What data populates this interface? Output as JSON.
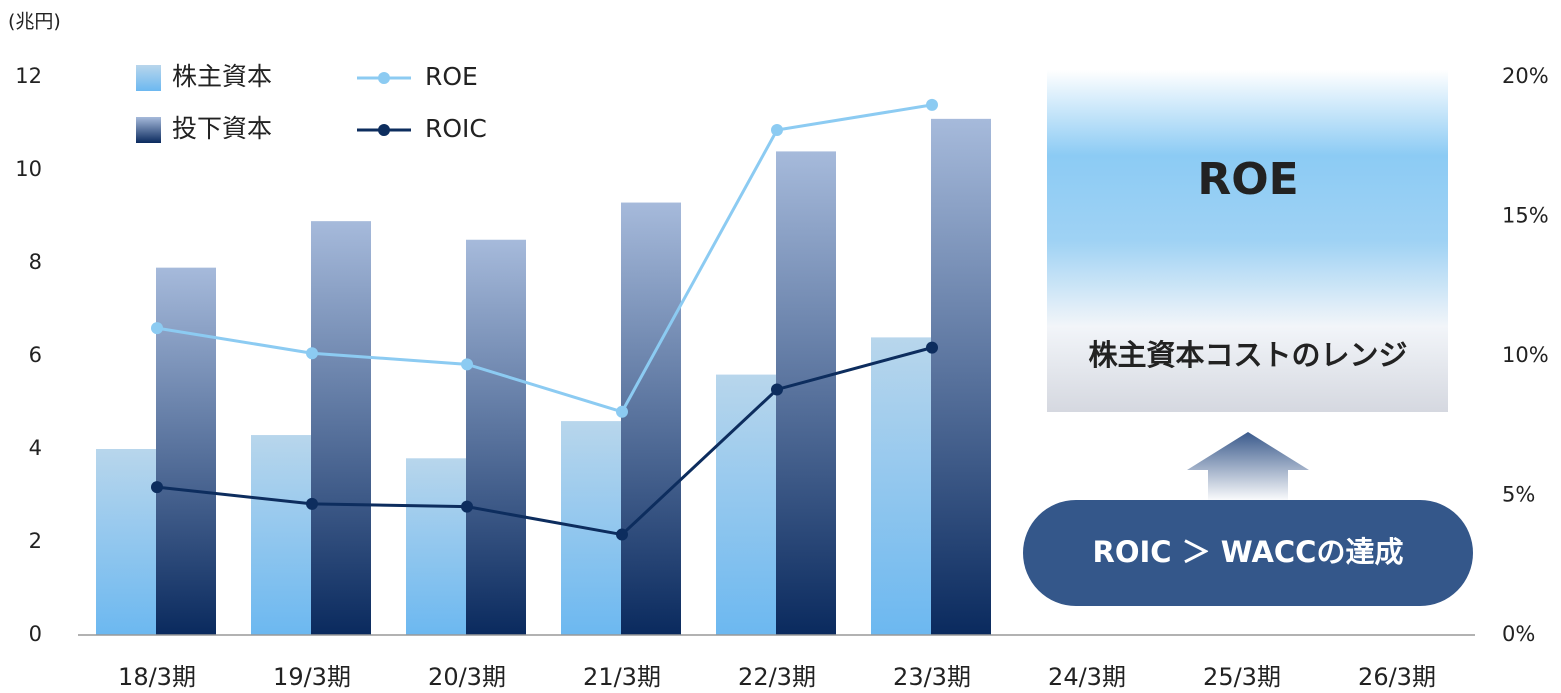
{
  "chart_data": {
    "type": "bar-line",
    "y_label": "(兆円)",
    "categories": [
      "18/3期",
      "19/3期",
      "20/3期",
      "21/3期",
      "22/3期",
      "23/3期",
      "24/3期",
      "25/3期",
      "26/3期"
    ],
    "series": [
      {
        "name": "株主資本",
        "type": "bar",
        "color": "#6cb8f0",
        "values": [
          4.0,
          4.3,
          3.8,
          4.6,
          5.6,
          6.4,
          null,
          null,
          null
        ]
      },
      {
        "name": "投下資本",
        "type": "bar",
        "color": "#0a2a5e",
        "values": [
          7.9,
          8.9,
          8.5,
          9.3,
          10.4,
          11.1,
          null,
          null,
          null
        ]
      },
      {
        "name": "ROE",
        "type": "line",
        "axis": "y2",
        "color": "#8ccbf2",
        "values": [
          11.0,
          10.1,
          9.7,
          8.0,
          18.1,
          19.0,
          null,
          null,
          null
        ]
      },
      {
        "name": "ROIC",
        "type": "line",
        "axis": "y2",
        "color": "#0d2d5e",
        "values": [
          5.3,
          4.7,
          4.6,
          3.6,
          8.8,
          10.3,
          null,
          null,
          null
        ]
      }
    ],
    "ylim": [
      0,
      12
    ],
    "yticks": [
      0,
      2,
      4,
      6,
      8,
      10,
      12
    ],
    "y2lim": [
      0,
      20
    ],
    "y2ticks": [
      {
        "value": 0,
        "label": "0%"
      },
      {
        "value": 5,
        "label": "5%"
      },
      {
        "value": 10,
        "label": "10%"
      },
      {
        "value": 15,
        "label": "15%"
      },
      {
        "value": 20,
        "label": "20%"
      }
    ],
    "annotations": [
      "ROE",
      "株主資本コストのレンジ",
      "ROIC ＞ WACCの達成"
    ]
  }
}
